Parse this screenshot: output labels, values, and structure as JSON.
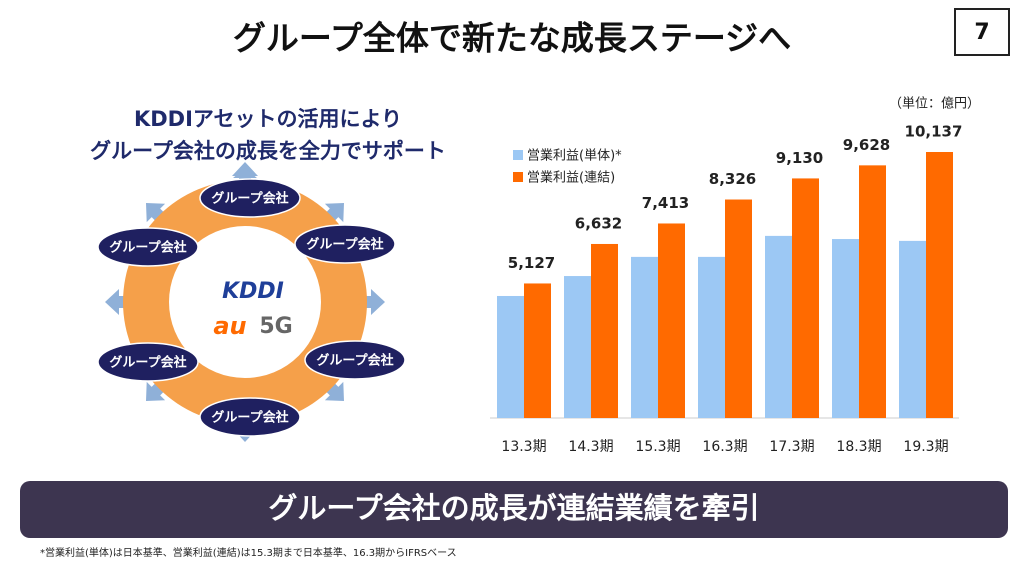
{
  "title": "グループ全体で新たな成長ステージへ",
  "page_number": "7",
  "diagram": {
    "heading": [
      "KDDIアセットの活用により",
      "グループ会社の成長を全力でサポート"
    ],
    "center": {
      "logo": "KDDI",
      "brand": "au",
      "network": "5G"
    },
    "nodes": [
      "グループ会社",
      "グループ会社",
      "グループ会社",
      "グループ会社",
      "グループ会社",
      "グループ会社"
    ]
  },
  "chart_data": {
    "type": "bar",
    "unit": "（単位：億円）",
    "categories": [
      "13.3期",
      "14.3期",
      "15.3期",
      "16.3期",
      "17.3期",
      "18.3期",
      "19.3期"
    ],
    "series": [
      {
        "name": "営業利益(単体)*",
        "color": "#9cc8f4",
        "values": [
          4650,
          5410,
          6140,
          6140,
          6940,
          6820,
          6750
        ]
      },
      {
        "name": "営業利益(連結)",
        "color": "#ff6a00",
        "values": [
          5127,
          6632,
          7413,
          8326,
          9130,
          9628,
          10137
        ],
        "value_labels": [
          "5,127",
          "6,632",
          "7,413",
          "8,326",
          "9,130",
          "9,628",
          "10,137"
        ]
      }
    ]
  },
  "banner": "グループ会社の成長が連結業績を牽引",
  "footnote": "*営業利益(単体)は日本基準、営業利益(連結)は15.3期まで日本基準、16.3期からIFRSベース"
}
